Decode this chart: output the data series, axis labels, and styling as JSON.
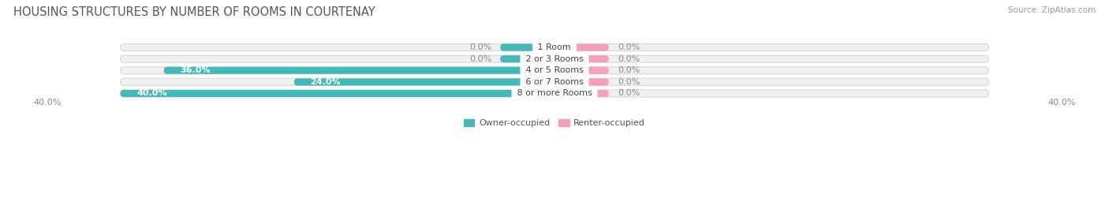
{
  "title": "HOUSING STRUCTURES BY NUMBER OF ROOMS IN COURTENAY",
  "source": "Source: ZipAtlas.com",
  "categories": [
    "1 Room",
    "2 or 3 Rooms",
    "4 or 5 Rooms",
    "6 or 7 Rooms",
    "8 or more Rooms"
  ],
  "owner_values": [
    0.0,
    0.0,
    36.0,
    24.0,
    40.0
  ],
  "renter_values": [
    0.0,
    0.0,
    0.0,
    0.0,
    0.0
  ],
  "owner_color": "#45b8b8",
  "renter_color": "#f4a0b8",
  "bar_bg_color": "#f0f0f0",
  "bar_bg_color2": "#e8e8e8",
  "max_value": 40.0,
  "renter_stub": 5.0,
  "owner_stub": 5.0,
  "title_fontsize": 10.5,
  "source_fontsize": 7.5,
  "value_fontsize": 8,
  "category_fontsize": 8,
  "axis_label_fontsize": 8,
  "background_color": "#ffffff",
  "legend_owner": "Owner-occupied",
  "legend_renter": "Renter-occupied",
  "xlim_left": -50.0,
  "xlim_right": 50.0,
  "bar_height": 0.62,
  "bar_gap": 0.18
}
